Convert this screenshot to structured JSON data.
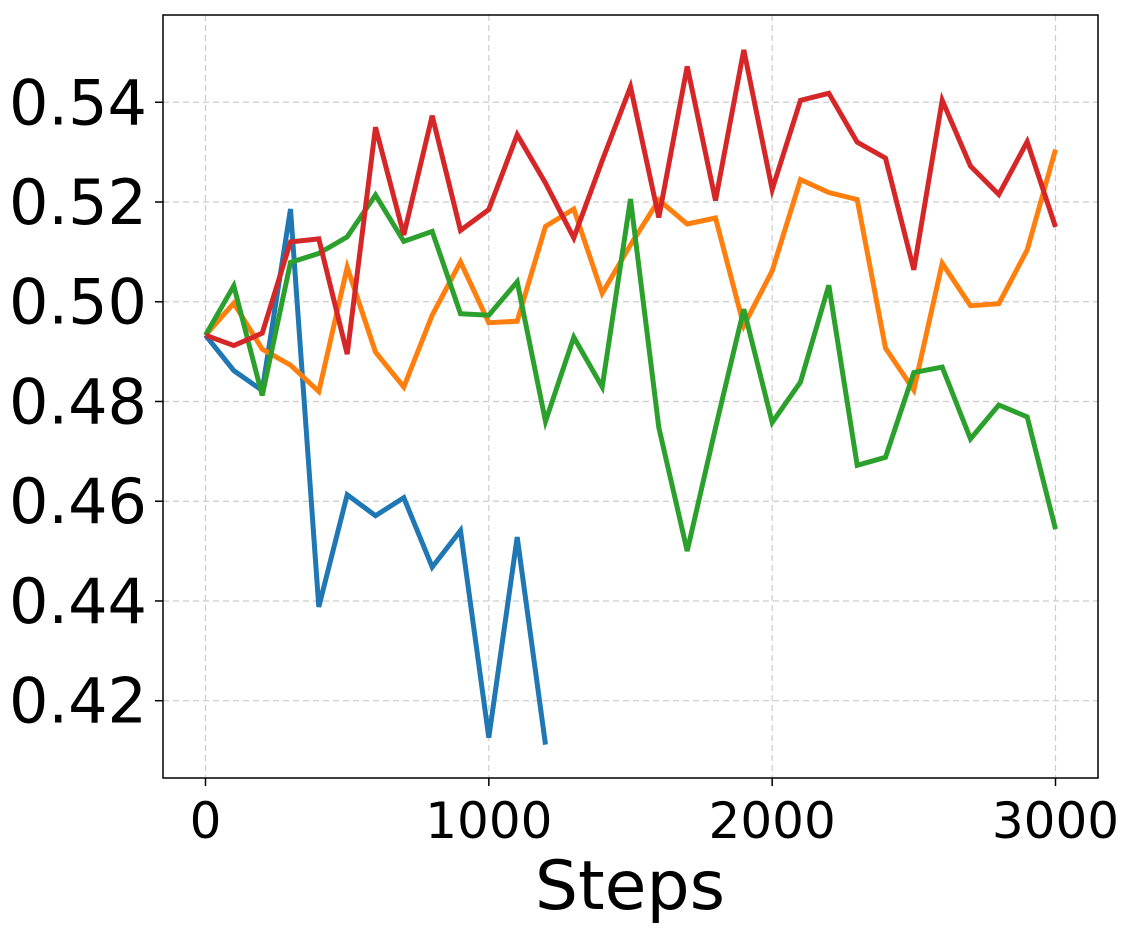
{
  "chart_data": {
    "type": "line",
    "title": "",
    "xlabel": "Steps",
    "ylabel": "",
    "xlim": [
      -150,
      3150
    ],
    "ylim": [
      0.4045,
      0.5575
    ],
    "xticks": [
      0,
      1000,
      2000,
      3000
    ],
    "xtick_labels": [
      "0",
      "1000",
      "2000",
      "3000"
    ],
    "yticks": [
      0.42,
      0.44,
      0.46,
      0.48,
      0.5,
      0.52,
      0.54
    ],
    "ytick_labels": [
      "0.42",
      "0.44",
      "0.46",
      "0.48",
      "0.50",
      "0.52",
      "0.54"
    ],
    "grid": true,
    "legend": false,
    "series": [
      {
        "color": "#1f77b4",
        "x": [
          0,
          100,
          200,
          300,
          400,
          500,
          600,
          700,
          800,
          900,
          1000,
          1100,
          1200
        ],
        "y": [
          0.4933,
          0.4862,
          0.4822,
          0.5186,
          0.4388,
          0.4613,
          0.4571,
          0.4607,
          0.4468,
          0.4541,
          0.4126,
          0.4528,
          0.4112
        ]
      },
      {
        "color": "#ff7f0e",
        "x": [
          0,
          100,
          200,
          300,
          400,
          500,
          600,
          700,
          800,
          900,
          1000,
          1100,
          1200,
          1300,
          1400,
          1500,
          1600,
          1700,
          1800,
          1900,
          2000,
          2100,
          2200,
          2300,
          2400,
          2500,
          2600,
          2700,
          2800,
          2900,
          3000
        ],
        "y": [
          0.4933,
          0.4997,
          0.4905,
          0.4873,
          0.482,
          0.5069,
          0.4899,
          0.4829,
          0.4973,
          0.508,
          0.4958,
          0.4961,
          0.5151,
          0.5186,
          0.5017,
          0.5114,
          0.5204,
          0.5156,
          0.5168,
          0.4952,
          0.5062,
          0.5245,
          0.5219,
          0.5205,
          0.4907,
          0.4823,
          0.5077,
          0.4992,
          0.4996,
          0.5104,
          0.5305
        ]
      },
      {
        "color": "#2ca02c",
        "x": [
          0,
          100,
          200,
          300,
          400,
          500,
          600,
          700,
          800,
          900,
          1000,
          1100,
          1200,
          1300,
          1400,
          1500,
          1600,
          1700,
          1800,
          1900,
          2000,
          2100,
          2200,
          2300,
          2400,
          2500,
          2600,
          2700,
          2800,
          2900,
          3000
        ],
        "y": [
          0.4933,
          0.5032,
          0.4812,
          0.5079,
          0.5097,
          0.513,
          0.5214,
          0.5121,
          0.5141,
          0.4976,
          0.4973,
          0.504,
          0.476,
          0.4929,
          0.4829,
          0.5206,
          0.4748,
          0.45,
          0.4747,
          0.4985,
          0.4758,
          0.4839,
          0.5033,
          0.4672,
          0.4688,
          0.4858,
          0.4869,
          0.4725,
          0.4793,
          0.4769,
          0.4544
        ]
      },
      {
        "color": "#d62728",
        "x": [
          0,
          100,
          200,
          300,
          400,
          500,
          600,
          700,
          800,
          900,
          1000,
          1100,
          1200,
          1300,
          1400,
          1500,
          1600,
          1700,
          1800,
          1900,
          2000,
          2100,
          2200,
          2300,
          2400,
          2500,
          2600,
          2700,
          2800,
          2900,
          3000
        ],
        "y": [
          0.4933,
          0.4912,
          0.4937,
          0.512,
          0.5126,
          0.4895,
          0.535,
          0.5134,
          0.5373,
          0.5143,
          0.5185,
          0.5335,
          0.5238,
          0.5128,
          0.5283,
          0.5431,
          0.5169,
          0.5472,
          0.5203,
          0.5505,
          0.5225,
          0.5404,
          0.5418,
          0.532,
          0.5288,
          0.5064,
          0.5404,
          0.5272,
          0.5215,
          0.5321,
          0.515
        ]
      }
    ]
  }
}
